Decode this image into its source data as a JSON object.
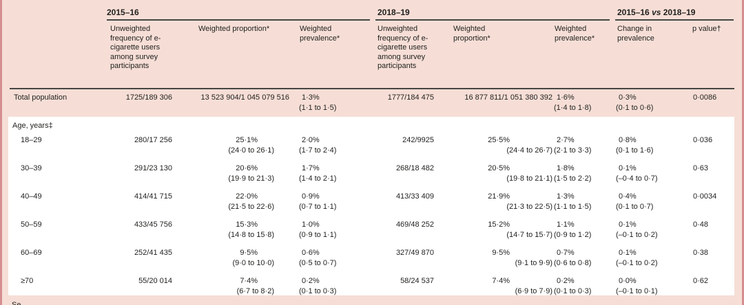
{
  "colors": {
    "header_bg": "#f6ded6",
    "body_bg": "#ffffff",
    "frame": "#d48e90",
    "rule": "#454543",
    "text": "#1f1f1d"
  },
  "header": {
    "groups": [
      {
        "label": "2015–16"
      },
      {
        "label": "2018–19"
      },
      {
        "pre": "2015–16 ",
        "vs": "vs",
        "post": " 2018–19"
      }
    ],
    "columns": {
      "freq": "Unweighted frequency of e-cigarette users among survey participants",
      "proportion": "Weighted proportion*",
      "prevalence": "Weighted prevalence*",
      "change": "Change in prevalence",
      "pvalue": "p value†"
    }
  },
  "table": {
    "section_label": "Age, years‡",
    "cutoff_text": "Se",
    "rows": [
      {
        "label": "Total population",
        "cells": [
          {
            "v": "1725/189 306"
          },
          {
            "v": "13 523 904/1 045 079 516"
          },
          {
            "v": "1·3%",
            "ci": "(1·1 to 1·5)"
          },
          {
            "v": "1777/184 475"
          },
          {
            "v": "16 877 811/1 051 380 392"
          },
          {
            "v": "1·6%",
            "ci": "(1·4 to 1·8)"
          },
          {
            "v": "0·3%",
            "ci": "(0·1 to 0·6)"
          },
          {
            "v": "0·0086"
          }
        ]
      },
      {
        "label": "18–29",
        "cells": [
          {
            "v": "280/17 256"
          },
          {
            "v": "25·1%",
            "ci": "(24·0 to 26·1)"
          },
          {
            "v": "2·0%",
            "ci": "(1·7 to 2·4)"
          },
          {
            "v": "242/9925"
          },
          {
            "v": "25·5%",
            "ci": "(24·4 to 26·7)"
          },
          {
            "v": "2·7%",
            "ci": "(2·1 to 3·3)"
          },
          {
            "v": "0·8%",
            "ci": "(0·1 to 1·6)"
          },
          {
            "v": "0·036"
          }
        ]
      },
      {
        "label": "30–39",
        "cells": [
          {
            "v": "291/23 130"
          },
          {
            "v": "20·6%",
            "ci": "(19·9 to 21·3)"
          },
          {
            "v": "1·7%",
            "ci": "(1·4 to 2·1)"
          },
          {
            "v": "268/18 482"
          },
          {
            "v": "20·5%",
            "ci": "(19·8 to 21·1)"
          },
          {
            "v": "1·8%",
            "ci": "(1·5 to 2·2)"
          },
          {
            "v": "0·1%",
            "ci": "(–0·4 to 0·7)"
          },
          {
            "v": "0·63"
          }
        ]
      },
      {
        "label": "40–49",
        "cells": [
          {
            "v": "414/41 715"
          },
          {
            "v": "22·0%",
            "ci": "(21·5 to 22·6)"
          },
          {
            "v": "0·9%",
            "ci": "(0·7 to 1·1)"
          },
          {
            "v": "413/33 409"
          },
          {
            "v": "21·9%",
            "ci": "(21·3 to 22·5)"
          },
          {
            "v": "1·3%",
            "ci": "(1·1 to 1·5)"
          },
          {
            "v": "0·4%",
            "ci": "(0·1 to 0·7)"
          },
          {
            "v": "0·0034"
          }
        ]
      },
      {
        "label": "50–59",
        "cells": [
          {
            "v": "433/45 756"
          },
          {
            "v": "15·3%",
            "ci": "(14·8 to 15·8)"
          },
          {
            "v": "1·0%",
            "ci": "(0·9 to 1·1)"
          },
          {
            "v": "469/48 252"
          },
          {
            "v": "15·2%",
            "ci": "(14·7 to 15·7)"
          },
          {
            "v": "1·1%",
            "ci": "(0·9 to 1·2)"
          },
          {
            "v": "0·1%",
            "ci": "(–0·1 to 0·2)"
          },
          {
            "v": "0·48"
          }
        ]
      },
      {
        "label": "60–69",
        "cells": [
          {
            "v": "252/41 435"
          },
          {
            "v": "9·5%",
            "ci": "(9·0 to 10·0)"
          },
          {
            "v": "0·6%",
            "ci": "(0·5 to 0·7)"
          },
          {
            "v": "327/49 870"
          },
          {
            "v": "9·5%",
            "ci": "(9·1 to 9·9)"
          },
          {
            "v": "0·7%",
            "ci": "(0·6 to 0·8)"
          },
          {
            "v": "0·1%",
            "ci": "(–0·1 to 0·2)"
          },
          {
            "v": "0·38"
          }
        ]
      },
      {
        "label": "≥70",
        "cells": [
          {
            "v": "55/20 014"
          },
          {
            "v": "7·4%",
            "ci": "(6·7 to 8·2)"
          },
          {
            "v": "0·2%",
            "ci": "(0·1 to 0·3)"
          },
          {
            "v": "58/24 537"
          },
          {
            "v": "7·4%",
            "ci": "(6·9 to 7·9)"
          },
          {
            "v": "0·2%",
            "ci": "(0·1 to 0·3)"
          },
          {
            "v": "0·0%",
            "ci": "(–0·1 to 0·1)"
          },
          {
            "v": "0·62"
          }
        ]
      }
    ]
  }
}
